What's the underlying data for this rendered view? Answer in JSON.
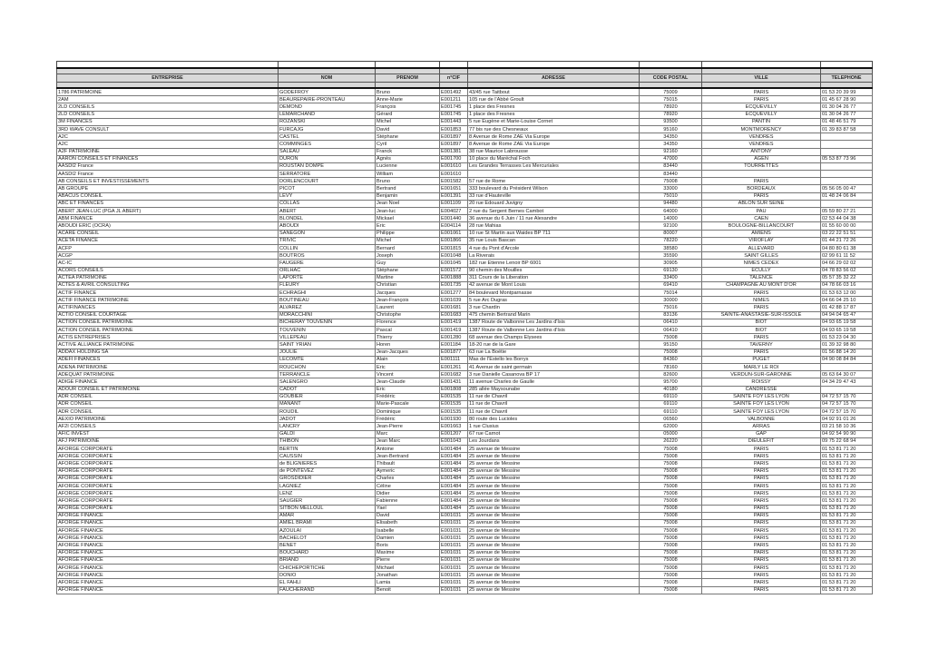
{
  "columns": [
    "ENTREPRISE",
    "NOM",
    "PRENOM",
    "n°CIF",
    "ADRESSE",
    "CODE POSTAL",
    "VILLE",
    "TELEPHONE"
  ],
  "rows": [
    [
      "1786 PATRIMOINE",
      "GODEFROY",
      "Bruno",
      "E001492",
      "43/45 rue Taitbout",
      "75009",
      "PARIS",
      "01 53 20 39 99"
    ],
    [
      "2AM",
      "BEAUREPAIRE-PRONTEAU",
      "Anne-Marie",
      "E001211",
      "105 rue de l'Abbé Groult",
      "75015",
      "PARIS",
      "01 45 67 28 90"
    ],
    [
      "2LD CONSEILS",
      "DEMOND",
      "François",
      "E001745",
      "1 place des Fresnes",
      "78920",
      "ECQUEVILLY",
      "01 30 04 26 77"
    ],
    [
      "2LD CONSEILS",
      "LEMARCHAND",
      "Gérard",
      "E001745",
      "1 place des Fresnes",
      "78920",
      "ECQUEVILLY",
      "01 30 04 26 77"
    ],
    [
      "3M FINANCES",
      "ROZANSKI",
      "Michel",
      "E001443",
      "5 rue Eugène et Marie-Louise Cornet",
      "93500",
      "PANTIN",
      "01 48 46 51 79"
    ],
    [
      "3RD WAVE CONSULT",
      "FURCAJG",
      "David",
      "E001853",
      "77 bis rue des Chesneaux",
      "95160",
      "MONTMORENCY",
      "01 39 83 87 58"
    ],
    [
      "A2C",
      "CASTEL",
      "Stéphane",
      "E001897",
      "8 Avenue de Rome ZAE Via Europe",
      "34350",
      "VENDRES",
      ""
    ],
    [
      "A2C",
      "COMMINGES",
      "Cyril",
      "E001897",
      "8 Avenue de Rome ZAE Via Europe",
      "34350",
      "VENDRES",
      ""
    ],
    [
      "A2F PATRIMOINE",
      "SALEAU",
      "Franck",
      "E001381",
      "38 rue Maurice Labrousse",
      "92160",
      "ANTONY",
      ""
    ],
    [
      "AARON CONSEILS ET FINANCES",
      "DURON",
      "Agnès",
      "E001700",
      "10 place du Maréchal Foch",
      "47000",
      "AGEN",
      "05 53 87 73 96"
    ],
    [
      "AASDI2 France",
      "ROUSTAN DOMPE",
      "Lucienne",
      "E001610",
      "Les Grandes Terrasses Les Mercuriales",
      "83440",
      "TOURRETTES",
      ""
    ],
    [
      "AASDI2 France",
      "SERRATORE",
      "William",
      "E001610",
      "",
      "83440",
      "",
      ""
    ],
    [
      "AB CONSEILS ET INVESTISSEMENTS",
      "DORLENCOURT",
      "Bruno",
      "E001582",
      "57 rue de Rome",
      "75008",
      "PARIS",
      ""
    ],
    [
      "AB GROUPE",
      "PICOT",
      "Bertrand",
      "E001651",
      "333 boulevard du Président Wilson",
      "33000",
      "BORDEAUX",
      "05 56 05 00 47"
    ],
    [
      "ABACUS CONSEIL",
      "LEVY",
      "Benjamin",
      "E001391",
      "33 rue d'Hauteville",
      "75010",
      "PARIS",
      "01 48 24 06 84"
    ],
    [
      "ABC ET FINANCES",
      "COLLAS",
      "Jean Noel",
      "E001109",
      "20 rue Edouard Juvigny",
      "94480",
      "ABLON SUR SEINE",
      ""
    ],
    [
      "ABERT JEAN-LUC (PGA JL ABERT)",
      "ABERT",
      "Jean-luc",
      "E004027",
      "2 rue du Sergent Bernes Cambot",
      "64000",
      "PAU",
      "05 59 80 27 21"
    ],
    [
      "ABM FINANCE",
      "BLONDEL",
      "Mickael",
      "E001440",
      "36 avenue du 6 Juin / 11 rue Alexandre",
      "14000",
      "CAEN",
      "02 53 44 04 38"
    ],
    [
      "ABOUDI ERIC (OCRA)",
      "ABOUDI",
      "Eric",
      "E004114",
      "28 rue Mahias",
      "92100",
      "BOULOGNE-BILLANCOURT",
      "01 55 60 00 00"
    ],
    [
      "ACARE CONSEIL",
      "SANEGON",
      "Philippe",
      "E001061",
      "10 rue St Martin aux Waides BP 711",
      "80007",
      "AMIENS",
      "03 22 22 51 51"
    ],
    [
      "ACETA FINANCE",
      "TRIVIC",
      "Michel",
      "E001866",
      "35 rue Louis Bascan",
      "78220",
      "VIROFLAY",
      "01 44 21 72 26"
    ],
    [
      "ACFP",
      "COLLIN",
      "Bernard",
      "E001815",
      "4 rue du Pont d'Arcole",
      "38580",
      "ALLEVARD",
      "04 80 80 61 38"
    ],
    [
      "ACGP",
      "BOUTROS",
      "Joseph",
      "E001048",
      "La Riverais",
      "35590",
      "SAINT GILLES",
      "02 99 61 11 52"
    ],
    [
      "AC-IC",
      "FAUGERE",
      "Guy",
      "E001045",
      "182 rue Etienne Lenoir BP 6001",
      "30905",
      "NIMES CEDEX",
      "04 66 29 02 02"
    ],
    [
      "ACORS CONSEILS",
      "ORLHAC",
      "Stéphane",
      "E001572",
      "90 chemin des Mouilles",
      "69130",
      "ECULLY",
      "04 78 83 56 02"
    ],
    [
      "ACTEA PATRIMOINE",
      "LAPORTE",
      "Martine",
      "E001888",
      "311 Cours de la Liberation",
      "33400",
      "TALENCE",
      "05 57 35 32 22"
    ],
    [
      "ACTES & AVRIL CONSULTING",
      "FLEURY",
      "Christian",
      "E001735",
      "42 avenue de Mont Louis",
      "69410",
      "CHAMPAGNE AU MONT D'OR",
      "04 78 66 03 16"
    ],
    [
      "ACTIF FINANCE",
      "ECHRAGHI",
      "Jacques",
      "E001277",
      "84 boulevard Montparnasse",
      "75014",
      "PARIS",
      "01 53 63 12 00"
    ],
    [
      "ACTIF FINANCE PATRIMOINE",
      "BOUTINEAU",
      "Jean-François",
      "E001039",
      "5 rue Arc Dugras",
      "30000",
      "NIMES",
      "04 66 04 25 10"
    ],
    [
      "ACTIFINANCES",
      "ALVAREZ",
      "Laurent",
      "E001681",
      "3 rue Chardin",
      "75016",
      "PARIS",
      "01 42 88 17 87"
    ],
    [
      "ACTIO CONSEIL COURTAGE",
      "MORACCHINI",
      "Christophe",
      "E001683",
      "475 chemin Bertrand Marin",
      "83136",
      "SAINTE-ANASTASIE-SUR-ISSOLE",
      "04 94 04 65 47"
    ],
    [
      "ACTION CONSEIL PATRIMOINE",
      "BICHERAY TOUVENIN",
      "Florence",
      "E001419",
      "1387 Route de Valbonne Les Jardins d'Isis",
      "06410",
      "BIOT",
      "04 93 65 19 58"
    ],
    [
      "ACTION CONSEIL PATRIMOINE",
      "TOUVENIN",
      "Pascal",
      "E001419",
      "1387 Route de Valbonne Les Jardins d'Isis",
      "06410",
      "BIOT",
      "04 93 65 19 58"
    ],
    [
      "ACTIS ENTREPRISES",
      "VILLEPEAU",
      "Thierry",
      "E001280",
      "68 avenue des Champs Elysees",
      "75008",
      "PARIS",
      "01 53 23 04 30"
    ],
    [
      "ACTIVE ALLIANCE PATRIMOINE",
      "SAINT YRIAN",
      "Horen",
      "E001184",
      "18-20 rue de la Gare",
      "95150",
      "TAVERNY",
      "01 39 32 98 80"
    ],
    [
      "ADDAX HOLDING SA",
      "JOULIE",
      "Jean-Jacques",
      "E001877",
      "63 rue La Boétie",
      "75008",
      "PARIS",
      "01 56 88 14 20"
    ],
    [
      "ADEFI FINANCES",
      "LECOMTE",
      "Alain",
      "E001111",
      "Mas de l'Estello les Borrys",
      "84360",
      "PUGET",
      "04 90 08 84 84"
    ],
    [
      "ADENA PATRIMOINE",
      "ROUCHON",
      "Eric",
      "E001261",
      "41 Avenue de saint germain",
      "78160",
      "MARLY LE ROI",
      ""
    ],
    [
      "ADEQUAT PATRIMOINE",
      "TERRANCLE",
      "Vincent",
      "E001682",
      "3 rue Danielle Casanova BP 17",
      "82600",
      "VERDUN-SUR-GARONNE",
      "05 63 64 30 07"
    ],
    [
      "ADIGE FINANCE",
      "SALENGRO",
      "Jean-Claude",
      "E001431",
      "11 avenue Charles de Gaulle",
      "95700",
      "ROISSY",
      "04 34 29 47 43"
    ],
    [
      "ADOUR CONSEIL ET PATRIMOINE",
      "CADOT",
      "Eric",
      "E001808",
      "285 allée Maysounabe",
      "40180",
      "CANDRESSE",
      ""
    ],
    [
      "ADR CONSEIL",
      "GOUBIER",
      "Frédéric",
      "E001535",
      "11 rue de Chavril",
      "69110",
      "SAINTE FOY LES LYON",
      "04 72 57 15 70"
    ],
    [
      "ADR CONSEIL",
      "MANANT",
      "Marie-Pascale",
      "E001535",
      "11 rue de Chavril",
      "69110",
      "SAINTE FOY LES LYON",
      "04 72 57 15 70"
    ],
    [
      "ADR CONSEIL",
      "ROUDIL",
      "Dominique",
      "E001535",
      "11 rue de Chavril",
      "69110",
      "SAINTE FOY LES LYON",
      "04 72 57 15 70"
    ],
    [
      "AEXIO PATRIMOINE",
      "JADOT",
      "Frédéric",
      "E001930",
      "80 route des Lucioles",
      "06560",
      "VALBONNE",
      "04 92 91 01 26"
    ],
    [
      "AF2I CONSEILS",
      "LANCRY",
      "Jean-Pierre",
      "E001663",
      "1 rue Clusius",
      "62000",
      "ARRAS",
      "03 21 58 10 36"
    ],
    [
      "AFIC INVEST",
      "GALDI",
      "Marc",
      "E001207",
      "67 rue Carnot",
      "05000",
      "GAP",
      "04 92 54 90 90"
    ],
    [
      "AFJ PATRIMOINE",
      "THIBON",
      "Jean Marc",
      "E001043",
      "Les Jourdans",
      "26220",
      "DIEULEFIT",
      "09 75 22 68 94"
    ],
    [
      "AFORGE CORPORATE",
      "BERTIN",
      "Antoine",
      "E001484",
      "25 avenue de Messine",
      "75008",
      "PARIS",
      "01 53 81 71 20"
    ],
    [
      "AFORGE CORPORATE",
      "CAUSSIN",
      "Jean-Bertrand",
      "E001484",
      "25 avenue de Messine",
      "75008",
      "PARIS",
      "01 53 81 71 20"
    ],
    [
      "AFORGE CORPORATE",
      "de BLIGNIERES",
      "Thibault",
      "E001484",
      "25 avenue de Messine",
      "75008",
      "PARIS",
      "01 53 81 71 20"
    ],
    [
      "AFORGE CORPORATE",
      "de PONTEVEZ",
      "Aymeric",
      "E001484",
      "25 avenue de Messine",
      "75008",
      "PARIS",
      "01 53 81 71 20"
    ],
    [
      "AFORGE CORPORATE",
      "GROSDIDIER",
      "Charles",
      "E001484",
      "25 avenue de Messine",
      "75008",
      "PARIS",
      "01 53 81 71 20"
    ],
    [
      "AFORGE CORPORATE",
      "LAGNIEZ",
      "Céline",
      "E001484",
      "25 avenue de Messine",
      "75008",
      "PARIS",
      "01 53 81 71 20"
    ],
    [
      "AFORGE CORPORATE",
      "LENZ",
      "Didier",
      "E001484",
      "25 avenue de Messine",
      "75008",
      "PARIS",
      "01 53 81 71 20"
    ],
    [
      "AFORGE CORPORATE",
      "SAUGIER",
      "Fabienne",
      "E001484",
      "25 avenue de Messine",
      "75008",
      "PARIS",
      "01 53 81 71 20"
    ],
    [
      "AFORGE CORPORATE",
      "SITBON MELLOUL",
      "Yael",
      "E001484",
      "25 avenue de Messine",
      "75008",
      "PARIS",
      "01 53 81 71 20"
    ],
    [
      "AFORGE FINANCE",
      "AMAR",
      "David",
      "E001031",
      "25 avenue de Messine",
      "75008",
      "PARIS",
      "01 53 81 71 20"
    ],
    [
      "AFORGE FINANCE",
      "AMIEL BRAMI",
      "Elisabeth",
      "E001031",
      "25 avenue de Messine",
      "75008",
      "PARIS",
      "01 53 81 71 20"
    ],
    [
      "AFORGE FINANCE",
      "AZOULAI",
      "Isabelle",
      "E001031",
      "25 avenue de Messine",
      "75008",
      "PARIS",
      "01 53 81 71 20"
    ],
    [
      "AFORGE FINANCE",
      "BACHELOT",
      "Damien",
      "E001031",
      "25 avenue de Messine",
      "75008",
      "PARIS",
      "01 53 81 71 20"
    ],
    [
      "AFORGE FINANCE",
      "BENET",
      "Boris",
      "E001031",
      "25 avenue de Messine",
      "75008",
      "PARIS",
      "01 53 81 71 20"
    ],
    [
      "AFORGE FINANCE",
      "BOUCHARD",
      "Maxime",
      "E001031",
      "25 avenue de Messine",
      "75008",
      "PARIS",
      "01 53 81 71 20"
    ],
    [
      "AFORGE FINANCE",
      "BRIAND",
      "Pierre",
      "E001031",
      "25 avenue de Messine",
      "75008",
      "PARIS",
      "01 53 81 71 20"
    ],
    [
      "AFORGE FINANCE",
      "CHICHEPORTICHE",
      "Michael",
      "E001031",
      "25 avenue de Messine",
      "75008",
      "PARIS",
      "01 53 81 71 20"
    ],
    [
      "AFORGE FINANCE",
      "DONIO",
      "Jonathan",
      "E001031",
      "25 avenue de Messine",
      "75008",
      "PARIS",
      "01 53 81 71 20"
    ],
    [
      "AFORGE FINANCE",
      "EL FAHLI",
      "Lamia",
      "E001031",
      "25 avenue de Messine",
      "75008",
      "PARIS",
      "01 53 81 71 20"
    ],
    [
      "AFORGE FINANCE",
      "FAUCHERAND",
      "Benoit",
      "E001031",
      "25 avenue de Messine",
      "75008",
      "PARIS",
      "01 53 81 71 20"
    ]
  ]
}
